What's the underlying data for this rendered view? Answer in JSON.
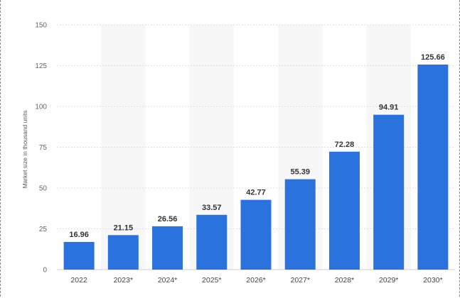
{
  "chart_data": {
    "type": "bar",
    "categories": [
      "2022",
      "2023*",
      "2024*",
      "2025*",
      "2026*",
      "2027*",
      "2028*",
      "2029*",
      "2030*"
    ],
    "values": [
      16.96,
      21.15,
      26.56,
      33.57,
      42.77,
      55.39,
      72.28,
      94.91,
      125.66
    ],
    "value_labels": [
      "16.96",
      "21.15",
      "26.56",
      "33.57",
      "42.77",
      "55.39",
      "72.28",
      "94.91",
      "125.66"
    ],
    "ylabel": "Market size in thousand units",
    "xlabel": "",
    "ylim": [
      0,
      150
    ],
    "yticks": [
      0,
      25,
      50,
      75,
      100,
      125,
      150
    ],
    "grid": true,
    "bar_color": "#2a72de",
    "alternating_band_color": "#f7f7f7"
  }
}
